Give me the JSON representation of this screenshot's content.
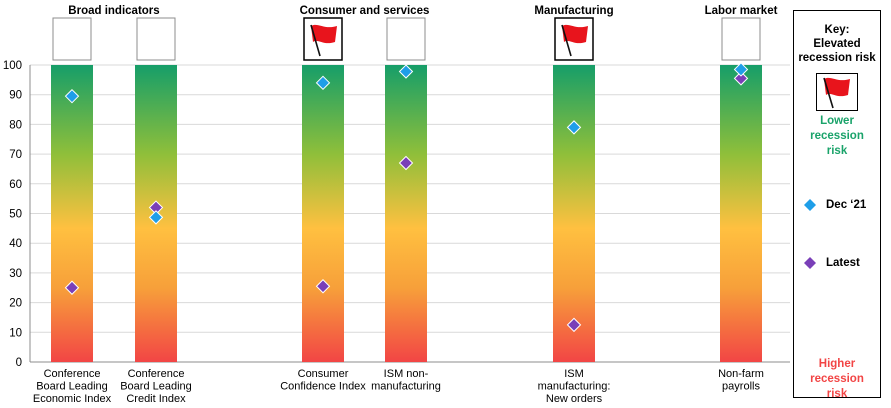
{
  "chart_data": {
    "type": "scatter",
    "ylim": [
      0,
      100
    ],
    "yticks": [
      0,
      10,
      20,
      30,
      40,
      50,
      60,
      70,
      80,
      90,
      100
    ],
    "groups": [
      {
        "label": "Broad indicators",
        "indices": [
          0,
          1
        ]
      },
      {
        "label": "Consumer and services",
        "indices": [
          2,
          3
        ]
      },
      {
        "label": "Manufacturing",
        "indices": [
          4
        ]
      },
      {
        "label": "Labor market",
        "indices": [
          5
        ]
      }
    ],
    "categories": [
      {
        "lines": [
          "Conference",
          "Board Leading",
          "Economic Index"
        ],
        "flag": false
      },
      {
        "lines": [
          "Conference",
          "Board Leading",
          "Credit Index"
        ],
        "flag": false
      },
      {
        "lines": [
          "Consumer",
          "Confidence Index"
        ],
        "flag": true
      },
      {
        "lines": [
          "ISM non-",
          "manufacturing"
        ],
        "flag": false
      },
      {
        "lines": [
          "ISM",
          "manufacturing:",
          "New orders"
        ],
        "flag": true
      },
      {
        "lines": [
          "Non-farm",
          "payrolls"
        ],
        "flag": false
      }
    ],
    "series": [
      {
        "name": "Dec ‘21",
        "color": "#1f9ee8",
        "values": [
          89.5,
          48.7,
          94.0,
          97.8,
          79.0,
          98.5
        ]
      },
      {
        "name": "Latest",
        "color": "#7a3fb8",
        "values": [
          25.0,
          52.0,
          25.5,
          67.0,
          12.5,
          95.5
        ]
      }
    ],
    "gradient_colors": {
      "top": "#169e69",
      "mid_upper": "#8fbf3a",
      "mid": "#ffc040",
      "mid_lower": "#f7a03a",
      "bottom": "#f24545"
    }
  },
  "key": {
    "title": "Key:\nElevated\nrecession risk",
    "lower": "Lower\nrecession\nrisk",
    "higher": "Higher\nrecession\nrisk",
    "items": [
      {
        "label": "Dec ‘21",
        "color": "#1f9ee8"
      },
      {
        "label": "Latest",
        "color": "#7a3fb8"
      }
    ]
  }
}
